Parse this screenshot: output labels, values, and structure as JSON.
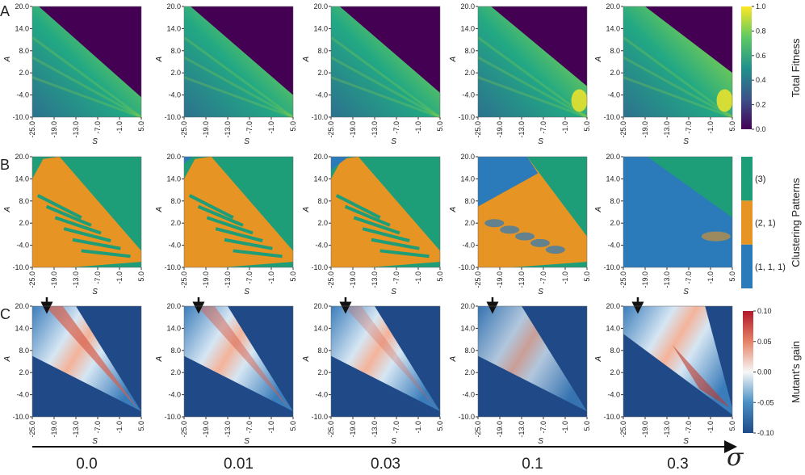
{
  "panel_labels": [
    "A",
    "B",
    "C"
  ],
  "x_axis": {
    "label": "S",
    "ticks": [
      {
        "value": -25,
        "label": "-25.0"
      },
      {
        "value": -19,
        "label": "-19.0"
      },
      {
        "value": -13,
        "label": "-13.0"
      },
      {
        "value": -7,
        "label": "-7.0"
      },
      {
        "value": -1,
        "label": "-1.0"
      },
      {
        "value": 5,
        "label": "5.0"
      }
    ]
  },
  "y_axis": {
    "label": "A",
    "ticks": [
      {
        "value": -10,
        "label": "-10.0"
      },
      {
        "value": -4,
        "label": "-4.0"
      },
      {
        "value": 2,
        "label": "2.0"
      },
      {
        "value": 8,
        "label": "8.0"
      },
      {
        "value": 14,
        "label": "14.0"
      },
      {
        "value": 20,
        "label": "20.0"
      }
    ]
  },
  "sigma_labels": [
    "0.0",
    "0.01",
    "0.03",
    "0.1",
    "0.3"
  ],
  "sigma_symbol": "σ",
  "colorbars": [
    {
      "title": "Total Fitness",
      "colors": [
        "#440154",
        "#3b528b",
        "#21918c",
        "#5ec962",
        "#fde725"
      ],
      "ticks": [
        {
          "value": 0,
          "label": "0.0"
        },
        {
          "value": 0.2,
          "label": "0.2"
        },
        {
          "value": 0.4,
          "label": "0.4"
        },
        {
          "value": 0.6,
          "label": "0.6"
        },
        {
          "value": 0.8,
          "label": "0.8"
        },
        {
          "value": 1,
          "label": "1.0"
        }
      ]
    },
    {
      "title": "Clustering Patterns",
      "categories": [
        "(1, 1, 1)",
        "(2, 1)",
        "(3)"
      ],
      "colors": [
        "#2b7bba",
        "#e69424",
        "#1d9d78"
      ]
    },
    {
      "title": "Mutant's gain",
      "colors": [
        "#1f4a87",
        "#4a90c4",
        "#f7f7f7",
        "#e58368",
        "#b2182b"
      ],
      "ticks": [
        {
          "value": -0.1,
          "label": "-0.10"
        },
        {
          "value": -0.05,
          "label": "-0.05"
        },
        {
          "value": 0,
          "label": "0.00"
        },
        {
          "value": 0.05,
          "label": "0.05"
        },
        {
          "value": 0.1,
          "label": "0.10"
        }
      ]
    }
  ]
}
